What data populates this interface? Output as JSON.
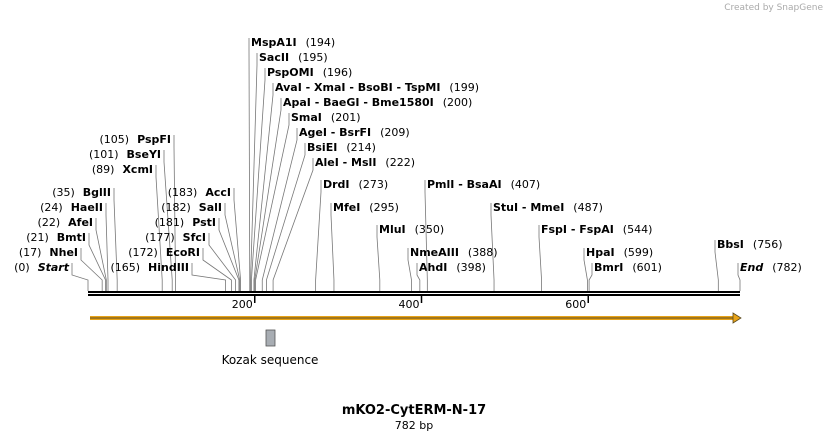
{
  "watermark": "Created by SnapGene",
  "title": "mKO2-CytERM-N-17",
  "subtitle": "782 bp",
  "feature": "Kozak sequence",
  "ruler_ticks": [
    200,
    400,
    600
  ],
  "sites": [
    {
      "name": "MspA1I",
      "position": {
        "value": 194,
        "label": "(194)"
      }
    },
    {
      "name": "SacII",
      "position": {
        "value": 195,
        "label": "(195)"
      }
    },
    {
      "name": "PspOMI",
      "position": {
        "value": 196,
        "label": "(196)"
      }
    },
    {
      "name": "AvaI  - XmaI  - BsoBI  - TspMI",
      "position": {
        "value": 199,
        "label": "(199)"
      }
    },
    {
      "name": "ApaI  - BaeGI  - Bme1580I",
      "position": {
        "value": 200,
        "label": "(200)"
      }
    },
    {
      "name": "SmaI",
      "position": {
        "value": 201,
        "label": "(201)"
      }
    },
    {
      "name": "AgeI  - BsrFI",
      "position": {
        "value": 209,
        "label": "(209)"
      }
    },
    {
      "name": "BsiEI",
      "position": {
        "value": 214,
        "label": "(214)"
      }
    },
    {
      "name": "AleI  - MslI",
      "position": {
        "value": 222,
        "label": "(222)"
      }
    },
    {
      "name": "DrdI",
      "position": {
        "value": 273,
        "label": "(273)"
      }
    },
    {
      "name": "MfeI",
      "position": {
        "value": 295,
        "label": "(295)"
      }
    },
    {
      "name": "MluI",
      "position": {
        "value": 350,
        "label": "(350)"
      }
    },
    {
      "name": "NmeAIII",
      "position": {
        "value": 388,
        "label": "(388)"
      }
    },
    {
      "name": "AhdI",
      "position": {
        "value": 398,
        "label": "(398)"
      }
    },
    {
      "name": "PmlI  - BsaAI",
      "position": {
        "value": 407,
        "label": "(407)"
      }
    },
    {
      "name": "StuI  - MmeI",
      "position": {
        "value": 487,
        "label": "(487)"
      }
    },
    {
      "name": "FspI  - FspAI",
      "position": {
        "value": 544,
        "label": "(544)"
      }
    },
    {
      "name": "HpaI",
      "position": {
        "value": 599,
        "label": "(599)"
      }
    },
    {
      "name": "BmrI",
      "position": {
        "value": 601,
        "label": "(601)"
      }
    },
    {
      "name": "BbsI",
      "position": {
        "value": 756,
        "label": "(756)"
      }
    },
    {
      "name": "End",
      "position": {
        "value": 782,
        "label": "(782)"
      }
    },
    {
      "name": "PspFI",
      "position": {
        "value": 105,
        "label": "(105)"
      }
    },
    {
      "name": "BseYI",
      "position": {
        "value": 101,
        "label": "(101)"
      }
    },
    {
      "name": "XcmI",
      "position": {
        "value": 89,
        "label": "(89)"
      }
    },
    {
      "name": "BglII",
      "position": {
        "value": 35,
        "label": "(35)"
      }
    },
    {
      "name": "HaeII",
      "position": {
        "value": 24,
        "label": "(24)"
      }
    },
    {
      "name": "AfeI",
      "position": {
        "value": 22,
        "label": "(22)"
      }
    },
    {
      "name": "BmtI",
      "position": {
        "value": 21,
        "label": "(21)"
      }
    },
    {
      "name": "NheI",
      "position": {
        "value": 17,
        "label": "(17)"
      }
    },
    {
      "name": "Start",
      "position": {
        "value": 0,
        "label": "(0)"
      }
    },
    {
      "name": "AccI",
      "position": {
        "value": 183,
        "label": "(183)"
      }
    },
    {
      "name": "SalI",
      "position": {
        "value": 182,
        "label": "(182)"
      }
    },
    {
      "name": "PstI",
      "position": {
        "value": 181,
        "label": "(181)"
      }
    },
    {
      "name": "SfcI",
      "position": {
        "value": 177,
        "label": "(177)"
      }
    },
    {
      "name": "EcoRI",
      "position": {
        "value": 172,
        "label": "(172)"
      }
    },
    {
      "name": "HindIII",
      "position": {
        "value": 165,
        "label": "(165)"
      }
    }
  ]
}
